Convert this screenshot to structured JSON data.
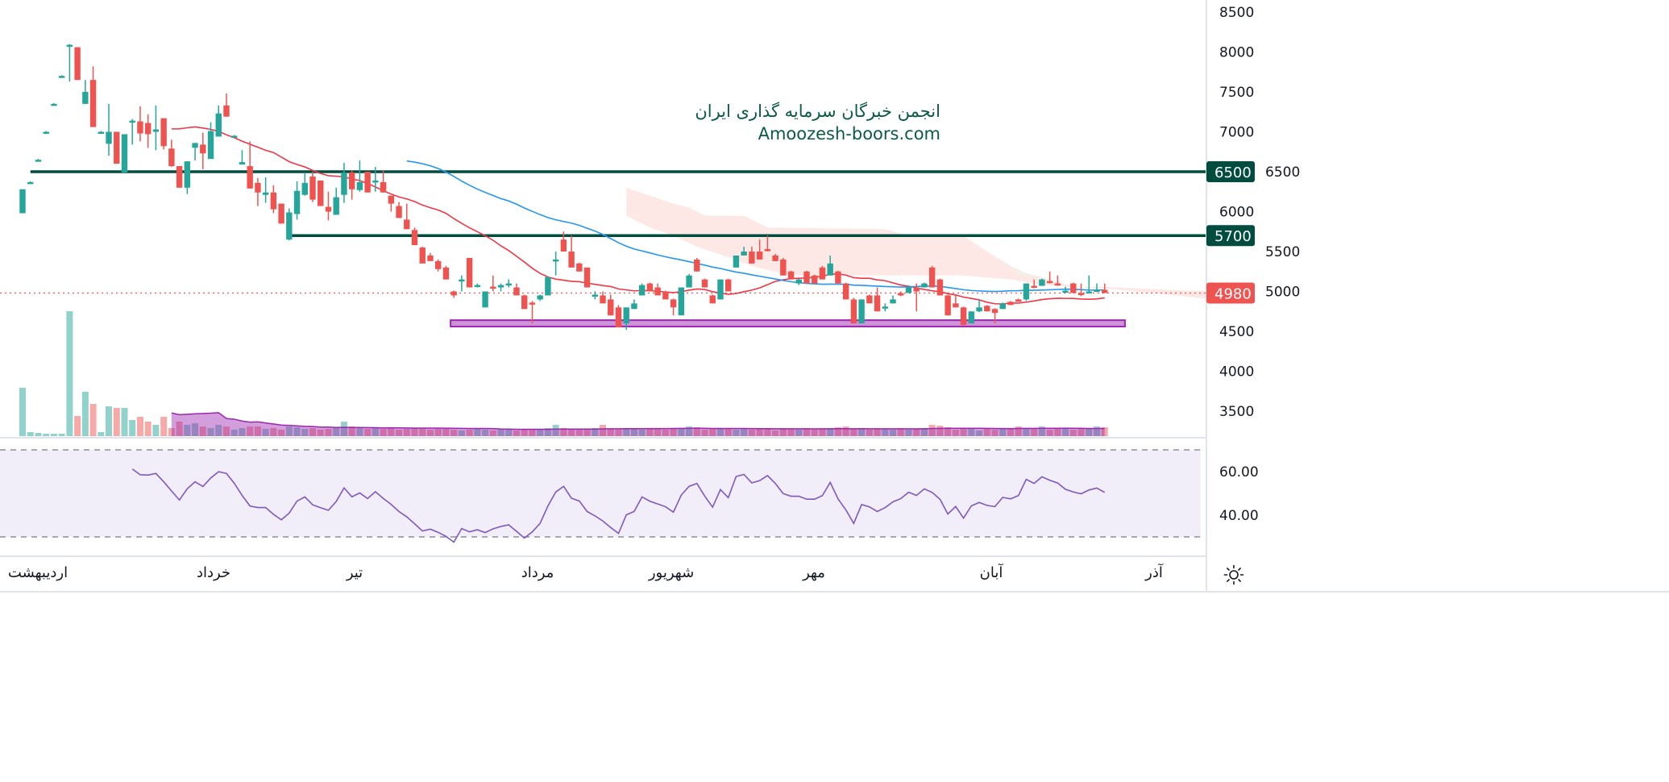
{
  "chart_data": {
    "type": "candlestick",
    "title": "",
    "watermark": {
      "line1": "انجمن خبرگان سرمایه گذاری ایران",
      "line2": "Amoozesh-boors.com"
    },
    "price_axis": {
      "ticks": [
        8500,
        8000,
        7500,
        7000,
        6500,
        6000,
        5500,
        5000,
        4500,
        4000,
        3500
      ],
      "range": [
        3200,
        8650
      ]
    },
    "time_axis": {
      "labels": [
        "اردیبهشت",
        "خرداد",
        "تیر",
        "مرداد",
        "شهریور",
        "مهر",
        "آبان",
        "آذر"
      ]
    },
    "last_price": {
      "value": 4980,
      "label": "4980",
      "color": "#ef5350"
    },
    "horizontal_lines": [
      {
        "value": 6500,
        "label": "6500",
        "color": "#004d40",
        "start_index": 1
      },
      {
        "value": 5700,
        "label": "5700",
        "color": "#004d40",
        "start_index": 34
      }
    ],
    "support_zone": {
      "low": 4560,
      "high": 4640,
      "start_index": 55,
      "end_index": 141,
      "fill": "#ce93d8",
      "border": "#9c27b0"
    },
    "moving_averages": [
      {
        "name": "MA20",
        "period": 20,
        "color": "#f23645"
      },
      {
        "name": "MA50",
        "period": 50,
        "color": "#2196f3"
      }
    ],
    "colors": {
      "up": "#26a69a",
      "down": "#ef5350",
      "cloud": "#fde8e6",
      "cloud_green": "#e8f5e9",
      "rsi": "#7e57c2",
      "volume_ma": "#9c27b0"
    },
    "candles_ohlc": [
      [
        5980,
        6280,
        5980,
        6280
      ],
      [
        6370,
        6380,
        6360,
        6370
      ],
      [
        6650,
        6660,
        6640,
        6650
      ],
      [
        7000,
        7010,
        6990,
        7000
      ],
      [
        7350,
        7360,
        7340,
        7350
      ],
      [
        7700,
        7710,
        7690,
        7700
      ],
      [
        8080,
        8100,
        7630,
        8090
      ],
      [
        8060,
        8060,
        7650,
        7650
      ],
      [
        7350,
        7650,
        7350,
        7500
      ],
      [
        7650,
        7820,
        7060,
        7060
      ],
      [
        7000,
        7010,
        6990,
        7000
      ],
      [
        6850,
        7350,
        6700,
        7000
      ],
      [
        7000,
        7000,
        6600,
        6600
      ],
      [
        6490,
        6970,
        6480,
        6970
      ],
      [
        7120,
        7160,
        6840,
        7140
      ],
      [
        7130,
        7320,
        6880,
        6980
      ],
      [
        7110,
        7220,
        6800,
        6970
      ],
      [
        7000,
        7330,
        6770,
        7030
      ],
      [
        7170,
        7170,
        6780,
        6820
      ],
      [
        6790,
        6900,
        6560,
        6570
      ],
      [
        6570,
        6570,
        6300,
        6300
      ],
      [
        6300,
        6630,
        6220,
        6630
      ],
      [
        6800,
        6860,
        6640,
        6860
      ],
      [
        6840,
        6990,
        6530,
        6730
      ],
      [
        6660,
        7120,
        6660,
        7010
      ],
      [
        6940,
        7330,
        6940,
        7230
      ],
      [
        7330,
        7480,
        7190,
        7190
      ],
      [
        6930,
        6960,
        6930,
        6950
      ],
      [
        6590,
        6770,
        6590,
        6620
      ],
      [
        6570,
        6880,
        6290,
        6290
      ],
      [
        6360,
        6420,
        6070,
        6240
      ],
      [
        6210,
        6430,
        6110,
        6240
      ],
      [
        6240,
        6330,
        5980,
        6030
      ],
      [
        6100,
        6100,
        5850,
        5850
      ],
      [
        5650,
        6040,
        5640,
        5990
      ],
      [
        5970,
        6380,
        5900,
        6260
      ],
      [
        6210,
        6490,
        6200,
        6360
      ],
      [
        6440,
        6500,
        6120,
        6150
      ],
      [
        6390,
        6390,
        6070,
        6070
      ],
      [
        6060,
        6250,
        5890,
        6000
      ],
      [
        5960,
        6300,
        5960,
        6180
      ],
      [
        6210,
        6610,
        6110,
        6490
      ],
      [
        6490,
        6520,
        6150,
        6280
      ],
      [
        6270,
        6640,
        6250,
        6370
      ],
      [
        6500,
        6500,
        6240,
        6240
      ],
      [
        6370,
        6560,
        6250,
        6390
      ],
      [
        6370,
        6520,
        6240,
        6240
      ],
      [
        6200,
        6200,
        6000,
        6100
      ],
      [
        6070,
        6120,
        5920,
        5920
      ],
      [
        5900,
        6100,
        5780,
        5780
      ],
      [
        5770,
        5800,
        5580,
        5580
      ],
      [
        5550,
        5560,
        5350,
        5350
      ],
      [
        5450,
        5480,
        5380,
        5380
      ],
      [
        5380,
        5400,
        5250,
        5280
      ],
      [
        5300,
        5320,
        5150,
        5150
      ],
      [
        5000,
        5010,
        4920,
        4950
      ],
      [
        5130,
        5200,
        5000,
        5150
      ],
      [
        5420,
        5420,
        5050,
        5050
      ],
      [
        5070,
        5100,
        5050,
        5080
      ],
      [
        4800,
        5000,
        4800,
        5000
      ],
      [
        5060,
        5200,
        5000,
        5050
      ],
      [
        5050,
        5100,
        5000,
        5080
      ],
      [
        5090,
        5150,
        5050,
        5100
      ],
      [
        5050,
        5100,
        4950,
        4950
      ],
      [
        4950,
        4960,
        4780,
        4780
      ],
      [
        4860,
        4880,
        4600,
        4850
      ],
      [
        4900,
        4960,
        4880,
        4950
      ],
      [
        4950,
        5180,
        4950,
        5180
      ],
      [
        5380,
        5500,
        5200,
        5400
      ],
      [
        5650,
        5750,
        5500,
        5500
      ],
      [
        5500,
        5700,
        5300,
        5300
      ],
      [
        5350,
        5360,
        5250,
        5250
      ],
      [
        5300,
        5300,
        5050,
        5050
      ],
      [
        4940,
        5000,
        4900,
        4960
      ],
      [
        4950,
        5000,
        4850,
        4850
      ],
      [
        4900,
        4960,
        4700,
        4700
      ],
      [
        4800,
        4830,
        4550,
        4550
      ],
      [
        4600,
        4800,
        4520,
        4800
      ],
      [
        4780,
        4900,
        4780,
        4850
      ],
      [
        4950,
        5100,
        4950,
        5080
      ],
      [
        5100,
        5110,
        5000,
        5000
      ],
      [
        5050,
        5100,
        4950,
        4950
      ],
      [
        5000,
        5010,
        4900,
        4900
      ],
      [
        4900,
        4910,
        4700,
        4800
      ],
      [
        4700,
        5050,
        4700,
        5050
      ],
      [
        5050,
        5220,
        5050,
        5200
      ],
      [
        5400,
        5420,
        5250,
        5250
      ],
      [
        5150,
        5160,
        5050,
        5050
      ],
      [
        4950,
        4960,
        4850,
        4850
      ],
      [
        4900,
        5150,
        4900,
        5150
      ],
      [
        5150,
        5160,
        5000,
        5000
      ],
      [
        5300,
        5450,
        5300,
        5450
      ],
      [
        5450,
        5560,
        5450,
        5500
      ],
      [
        5500,
        5560,
        5350,
        5350
      ],
      [
        5500,
        5650,
        5400,
        5400
      ],
      [
        5530,
        5700,
        5500,
        5510
      ],
      [
        5450,
        5470,
        5380,
        5380
      ],
      [
        5400,
        5420,
        5200,
        5200
      ],
      [
        5250,
        5260,
        5150,
        5150
      ],
      [
        5100,
        5160,
        5080,
        5150
      ],
      [
        5250,
        5260,
        5100,
        5100
      ],
      [
        5200,
        5210,
        5100,
        5100
      ],
      [
        5300,
        5320,
        5150,
        5150
      ],
      [
        5200,
        5450,
        5200,
        5350
      ],
      [
        5250,
        5260,
        5100,
        5100
      ],
      [
        5100,
        5110,
        4900,
        4900
      ],
      [
        4900,
        4920,
        4600,
        4600
      ],
      [
        4600,
        4900,
        4600,
        4900
      ],
      [
        4950,
        4960,
        4850,
        4850
      ],
      [
        4950,
        5050,
        4750,
        4750
      ],
      [
        4790,
        4850,
        4750,
        4810
      ],
      [
        4850,
        4950,
        4850,
        4900
      ],
      [
        4980,
        5000,
        4940,
        4950
      ],
      [
        4980,
        5060,
        4980,
        5050
      ],
      [
        5050,
        5100,
        4750,
        5000
      ],
      [
        5050,
        5110,
        5050,
        5100
      ],
      [
        5300,
        5320,
        5050,
        5050
      ],
      [
        5150,
        5160,
        4950,
        4950
      ],
      [
        4950,
        4960,
        4700,
        4700
      ],
      [
        4850,
        4950,
        4800,
        4800
      ],
      [
        4800,
        4810,
        4580,
        4580
      ],
      [
        4600,
        4750,
        4600,
        4750
      ],
      [
        4750,
        4900,
        4740,
        4800
      ],
      [
        4820,
        4830,
        4750,
        4750
      ],
      [
        4780,
        4790,
        4600,
        4730
      ],
      [
        4780,
        4860,
        4780,
        4850
      ],
      [
        4870,
        4880,
        4830,
        4830
      ],
      [
        4900,
        4910,
        4870,
        4870
      ],
      [
        4900,
        5100,
        4880,
        5100
      ],
      [
        5070,
        5150,
        5040,
        5050
      ],
      [
        5070,
        5160,
        5070,
        5150
      ],
      [
        5130,
        5250,
        5100,
        5110
      ],
      [
        5100,
        5200,
        5070,
        5080
      ],
      [
        4990,
        5060,
        4980,
        5010
      ],
      [
        5100,
        5110,
        4980,
        4980
      ],
      [
        4980,
        5100,
        4940,
        4960
      ],
      [
        4980,
        5200,
        4980,
        5000
      ],
      [
        5000,
        5100,
        4990,
        5020
      ],
      [
        5020,
        5100,
        4980,
        4980
      ]
    ],
    "volumes": [
      60,
      5,
      4,
      3,
      3,
      3,
      155,
      25,
      55,
      40,
      5,
      37,
      35,
      35,
      20,
      24,
      18,
      14,
      24,
      10,
      18,
      14,
      16,
      12,
      10,
      14,
      12,
      8,
      10,
      12,
      12,
      9,
      10,
      8,
      12,
      11,
      9,
      10,
      8,
      9,
      10,
      18,
      12,
      10,
      9,
      10,
      9,
      10,
      8,
      9,
      10,
      9,
      8,
      9,
      9,
      8,
      7,
      8,
      9,
      8,
      7,
      9,
      8,
      7,
      8,
      9,
      9,
      10,
      14,
      10,
      9,
      8,
      9,
      10,
      14,
      9,
      8,
      10,
      9,
      8,
      9,
      10,
      8,
      9,
      10,
      12,
      11,
      8,
      9,
      10,
      9,
      8,
      9,
      8,
      10,
      9,
      7,
      10,
      9,
      8,
      9,
      8,
      9,
      10,
      11,
      12,
      9,
      10,
      8,
      9,
      9,
      8,
      9,
      8,
      9,
      10,
      14,
      13,
      11,
      8,
      10,
      9,
      7,
      9,
      8,
      10,
      9,
      12,
      10,
      9,
      12,
      8,
      9,
      10,
      8,
      10,
      9,
      12,
      11
    ],
    "ichimoku_cloud": {
      "upper": [
        [
          77,
          6300
        ],
        [
          80,
          6200
        ],
        [
          83,
          6100
        ],
        [
          85,
          6050
        ],
        [
          87,
          5950
        ],
        [
          92,
          5950
        ],
        [
          95,
          5800
        ],
        [
          110,
          5780
        ],
        [
          113,
          5700
        ],
        [
          120,
          5700
        ],
        [
          123,
          5500
        ],
        [
          126,
          5320
        ],
        [
          128,
          5230
        ],
        [
          131,
          5150
        ],
        [
          134,
          5060
        ],
        [
          140,
          5050
        ],
        [
          146,
          5020
        ],
        [
          152,
          5000
        ]
      ],
      "lower": [
        [
          77,
          5950
        ],
        [
          80,
          5800
        ],
        [
          83,
          5700
        ],
        [
          86,
          5560
        ],
        [
          90,
          5430
        ],
        [
          93,
          5320
        ],
        [
          98,
          5200
        ],
        [
          120,
          5200
        ],
        [
          126,
          5150
        ],
        [
          130,
          5080
        ],
        [
          139,
          5030
        ],
        [
          146,
          4960
        ],
        [
          152,
          4900
        ]
      ]
    },
    "rsi": {
      "period": 14,
      "ticks": [
        "60.00",
        "40.00"
      ],
      "upper_band": 70,
      "lower_band": 30,
      "range": [
        20,
        75
      ]
    }
  }
}
